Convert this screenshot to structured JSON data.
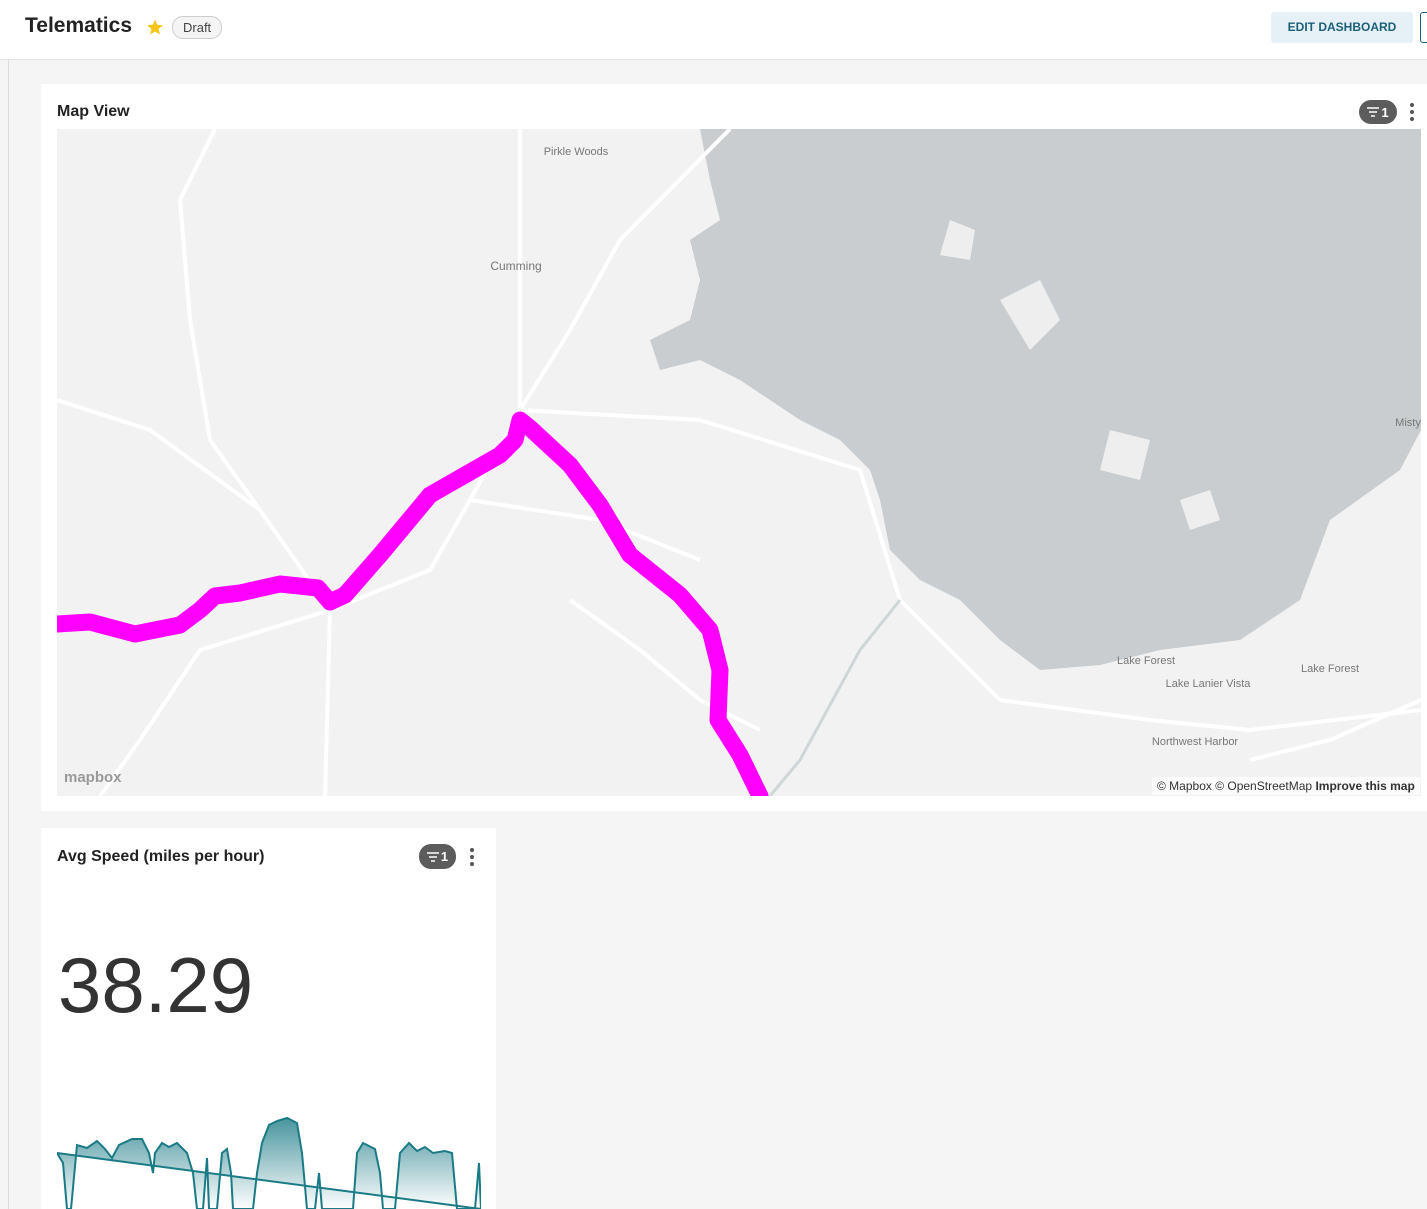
{
  "header": {
    "title": "Telematics",
    "status": "Draft",
    "edit_button": "EDIT DASHBOARD"
  },
  "map_card": {
    "title": "Map View",
    "filter_count": 1,
    "place_labels": [
      "Pirkle Woods",
      "Cumming",
      "Misty",
      "Lake Forest",
      "Lake Lanier Vista",
      "Lake Forest",
      "Northwest Harbor"
    ],
    "logo": "mapbox",
    "attribution": "© Mapbox © OpenStreetMap",
    "improve_link": "Improve this map"
  },
  "metric_card": {
    "title": "Avg Speed (miles per hour)",
    "filter_count": 1,
    "value": "38.29"
  }
}
